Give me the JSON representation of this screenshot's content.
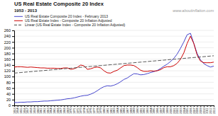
{
  "chart_data": {
    "type": "line",
    "title": "US Real Estate Composite 20 Index",
    "subtitle": "1953 - 2013",
    "annotations": [
      "www.aboutinflation.com"
    ],
    "x": [
      1953,
      1954,
      1955,
      1956,
      1957,
      1958,
      1959,
      1960,
      1961,
      1962,
      1963,
      1964,
      1965,
      1966,
      1967,
      1968,
      1969,
      1970,
      1971,
      1972,
      1973,
      1974,
      1975,
      1976,
      1977,
      1978,
      1979,
      1980,
      1981,
      1982,
      1983,
      1984,
      1985,
      1986,
      1987,
      1988,
      1989,
      1990,
      1991,
      1992,
      1993,
      1994,
      1995,
      1996,
      1997,
      1998,
      1999,
      2000,
      2001,
      2002,
      2003,
      2004,
      2005,
      2006,
      2007,
      2008,
      2009,
      2010,
      2011,
      2012,
      2013
    ],
    "series": [
      {
        "name": "US Real Estate Composite 20 Index - February 2013",
        "color": "#4444cc",
        "values": [
          10,
          10,
          11,
          11,
          12,
          12,
          13,
          13,
          14,
          15,
          15,
          16,
          17,
          18,
          19,
          21,
          23,
          24,
          26,
          29,
          32,
          34,
          35,
          39,
          44,
          51,
          59,
          65,
          68,
          67,
          70,
          75,
          82,
          90,
          95,
          103,
          110,
          109,
          106,
          107,
          110,
          114,
          117,
          121,
          128,
          136,
          143,
          152,
          163,
          178,
          198,
          220,
          245,
          250,
          215,
          180,
          158,
          145,
          138,
          133,
          136
        ]
      },
      {
        "name": "US Real Estate Index - Composite 20 Inflation Adjusted",
        "color": "#cc0000",
        "values": [
          133,
          134,
          134,
          133,
          132,
          133,
          132,
          131,
          130,
          130,
          129,
          129,
          129,
          128,
          128,
          130,
          130,
          125,
          127,
          132,
          140,
          137,
          125,
          127,
          131,
          133,
          130,
          120,
          113,
          112,
          118,
          122,
          130,
          138,
          140,
          140,
          138,
          131,
          122,
          118,
          118,
          120,
          119,
          120,
          124,
          131,
          134,
          134,
          138,
          146,
          160,
          182,
          215,
          240,
          215,
          175,
          154,
          148,
          148,
          148,
          150
        ]
      },
      {
        "name": "Linear (US Real Estate Index - Composite 20 Inflation Adjusted)",
        "color": "#444444",
        "line_style": "dashed",
        "values": [
          112,
          113,
          114,
          115,
          116,
          117,
          118,
          119,
          120,
          121,
          122,
          123,
          124,
          125,
          126,
          127,
          128,
          129,
          130,
          131,
          132,
          133,
          134,
          135,
          136,
          137,
          138,
          139,
          140,
          141,
          142,
          143,
          144,
          145,
          146,
          147,
          148,
          149,
          150,
          151,
          152,
          153,
          154,
          155,
          156,
          157,
          158,
          159,
          160,
          161,
          162,
          163,
          164,
          165,
          166,
          167,
          168,
          169,
          170,
          171,
          172
        ]
      }
    ],
    "xlim": [
      1953,
      2013
    ],
    "xticks": [
      1953,
      1954,
      1955,
      1956,
      1957,
      1958,
      1959,
      1960,
      1961,
      1962,
      1963,
      1964,
      1965,
      1966,
      1967,
      1968,
      1969,
      1970,
      1971,
      1972,
      1973,
      1974,
      1975,
      1976,
      1977,
      1978,
      1979,
      1980,
      1981,
      1982,
      1983,
      1984,
      1985,
      1986,
      1987,
      1988,
      1989,
      1990,
      1991,
      1992,
      1993,
      1994,
      1995,
      1996,
      1997,
      1998,
      1999,
      2000,
      2001,
      2002,
      2003,
      2004,
      2005,
      2006,
      2007,
      2008,
      2009,
      2010,
      2011,
      2012,
      2013
    ],
    "ylim": [
      0,
      260
    ],
    "yticks": [
      0,
      20,
      40,
      60,
      80,
      100,
      120,
      140,
      160,
      180,
      200,
      220,
      240,
      260
    ],
    "grid": true,
    "legend": "upper left"
  }
}
